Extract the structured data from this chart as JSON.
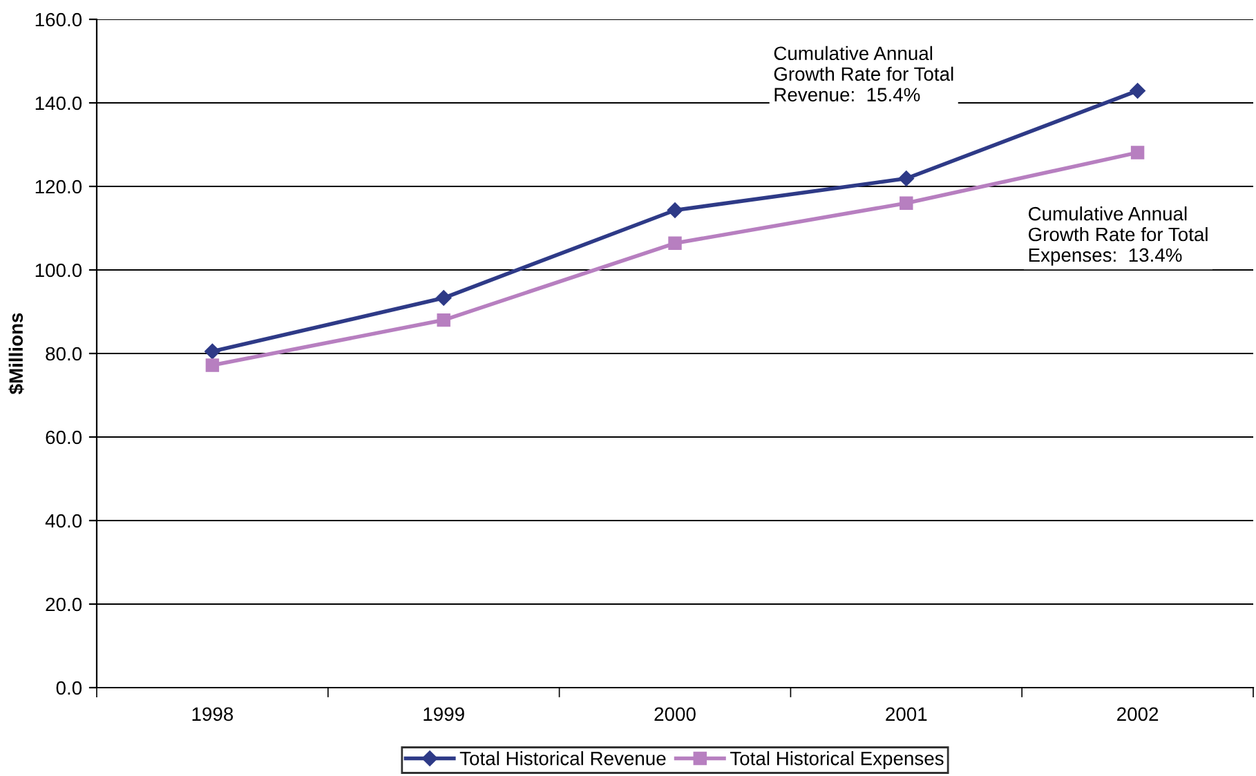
{
  "chart_data": {
    "type": "line",
    "ylabel": "$Millions",
    "categories": [
      "1998",
      "1999",
      "2000",
      "2001",
      "2002"
    ],
    "series": [
      {
        "name": "Total Historical Revenue",
        "color": "#2e3a87",
        "marker": "diamond",
        "values": [
          80.5,
          93.3,
          114.3,
          121.9,
          142.9
        ]
      },
      {
        "name": "Total Historical Expenses",
        "color": "#b77fc0",
        "marker": "square",
        "values": [
          77.2,
          88.0,
          106.4,
          116.0,
          128.1
        ]
      }
    ],
    "ylim": [
      0,
      160
    ],
    "yticks": [
      {
        "value": 0,
        "label": "0.0"
      },
      {
        "value": 20,
        "label": "20.0"
      },
      {
        "value": 40,
        "label": "40.0"
      },
      {
        "value": 60,
        "label": "60.0"
      },
      {
        "value": 80,
        "label": "80.0"
      },
      {
        "value": 100,
        "label": "100.0"
      },
      {
        "value": 120,
        "label": "120.0"
      },
      {
        "value": 140,
        "label": "140.0"
      },
      {
        "value": 160,
        "label": "160.0"
      }
    ],
    "grid": "y",
    "legend": "bottom",
    "line_style": "solid",
    "annotations": [
      "Cumulative Annual\nGrowth Rate for Total\nRevenue:  15.4%",
      "Cumulative Annual\nGrowth Rate for Total\nExpenses:  13.4%"
    ]
  }
}
